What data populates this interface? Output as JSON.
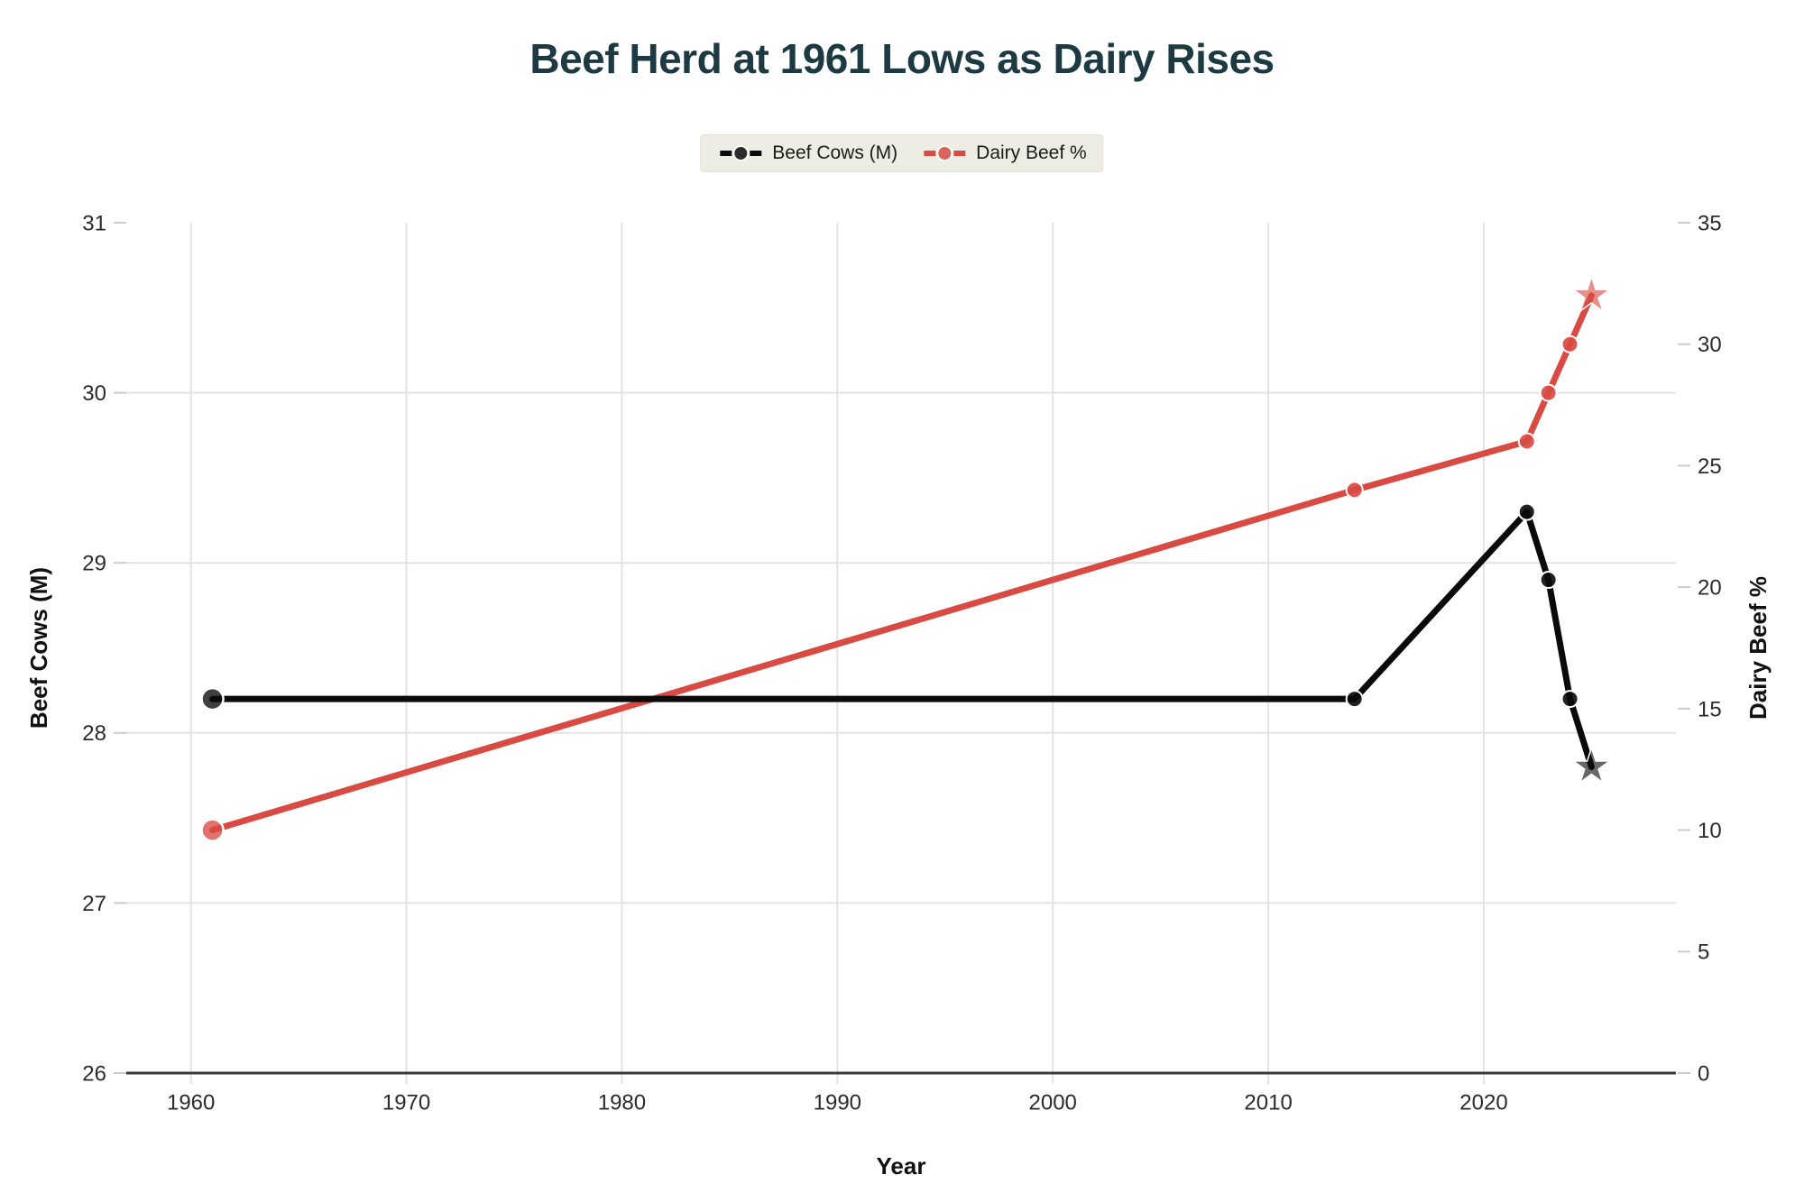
{
  "title": {
    "text": "Beef Herd at 1961 Lows as Dairy Rises",
    "color": "#1d3a42"
  },
  "legend": {
    "background": "#eeede4",
    "items": [
      {
        "label": "Beef Cows (M)",
        "color": "#0a0a0a"
      },
      {
        "label": "Dairy Beef %",
        "color": "#d84a42"
      }
    ]
  },
  "chart_data": {
    "type": "line",
    "title": "Beef Herd at 1961 Lows as Dairy Rises",
    "xlabel": "Year",
    "ylabel_left": "Beef Cows (M)",
    "ylabel_right": "Dairy Beef %",
    "x_range": [
      1957,
      2029
    ],
    "y_left_range": [
      26,
      31
    ],
    "y_right_range": [
      0,
      35
    ],
    "x_ticks": [
      1960,
      1970,
      1980,
      1990,
      2000,
      2010,
      2020
    ],
    "y_left_ticks": [
      26,
      27,
      28,
      29,
      30,
      31
    ],
    "y_right_ticks": [
      0,
      5,
      10,
      15,
      20,
      25,
      30,
      35
    ],
    "grid_horizontal_at_left_ticks": [
      27,
      28,
      29,
      30
    ],
    "grid_vertical_at_x_ticks": true,
    "legend_position": "top-center",
    "series": [
      {
        "name": "Dairy Beef %",
        "axis": "right",
        "color": "#d84a42",
        "x": [
          1961,
          2014,
          2022,
          2023,
          2024,
          2025
        ],
        "values": [
          10,
          24,
          26,
          28,
          30,
          32
        ],
        "start_marker": "circle-large",
        "mid_marker": "circle",
        "end_marker": "star"
      },
      {
        "name": "Beef Cows (M)",
        "axis": "left",
        "color": "#0a0a0a",
        "x": [
          1961,
          2014,
          2022,
          2023,
          2024,
          2025
        ],
        "values": [
          28.2,
          28.2,
          29.3,
          28.9,
          28.2,
          27.8
        ],
        "start_marker": "circle-large",
        "mid_marker": "circle",
        "end_marker": "star"
      }
    ]
  }
}
